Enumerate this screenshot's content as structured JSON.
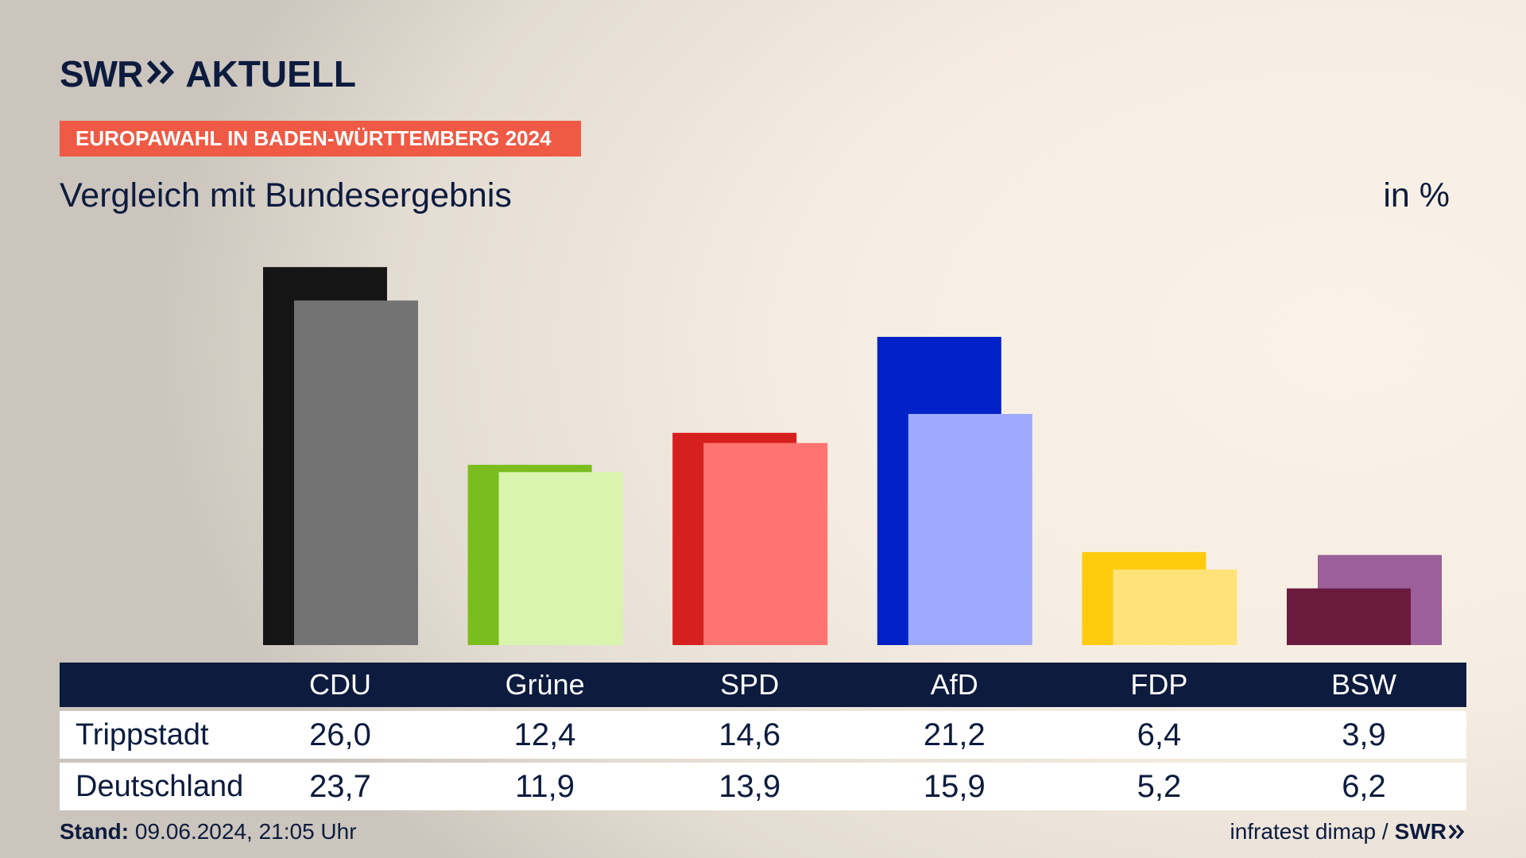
{
  "brand": {
    "swr": "SWR",
    "aktuell": "AKTUELL"
  },
  "tag": "EUROPAWAHL IN BADEN-WÜRTTEMBERG 2024",
  "subtitle": "Vergleich mit Bundesergebnis",
  "unit": "in %",
  "table": {
    "row1_label": "Trippstadt",
    "row2_label": "Deutschland"
  },
  "footer": {
    "stand_label": "Stand:",
    "stand_value": "09.06.2024, 21:05 Uhr",
    "source": "infratest dimap /",
    "source_brand": "SWR"
  },
  "chart_data": {
    "type": "bar",
    "categories": [
      "CDU",
      "Grüne",
      "SPD",
      "AfD",
      "FDP",
      "BSW"
    ],
    "series": [
      {
        "name": "Trippstadt",
        "values": [
          26.0,
          12.4,
          14.6,
          21.2,
          6.4,
          3.9
        ]
      },
      {
        "name": "Deutschland",
        "values": [
          23.7,
          11.9,
          13.9,
          15.9,
          5.2,
          6.2
        ]
      }
    ],
    "display_values": {
      "Trippstadt": [
        "26,0",
        "12,4",
        "14,6",
        "21,2",
        "6,4",
        "3,9"
      ],
      "Deutschland": [
        "23,7",
        "11,9",
        "13,9",
        "15,9",
        "5,2",
        "6,2"
      ]
    },
    "colors": {
      "primary": [
        "#151515",
        "#7abd1e",
        "#d61f1f",
        "#0021c8",
        "#ffcc0d",
        "#6b1a3e"
      ],
      "secondary": [
        "#737373",
        "#d9f5ad",
        "#ff7370",
        "#9eaaff",
        "#ffe37a",
        "#9c5f99"
      ]
    },
    "grid": false
  }
}
